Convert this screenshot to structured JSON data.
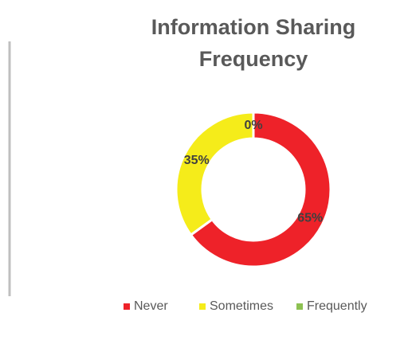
{
  "chart_data": {
    "type": "donut",
    "title": "Information Sharing Frequency",
    "categories": [
      "Never",
      "Sometimes",
      "Frequently"
    ],
    "values": [
      65,
      35,
      0
    ],
    "value_labels": [
      "65%",
      "35%",
      "0%"
    ],
    "colors": [
      "#ee2229",
      "#f5ec1a",
      "#8dc152"
    ],
    "legend": "bottom"
  }
}
